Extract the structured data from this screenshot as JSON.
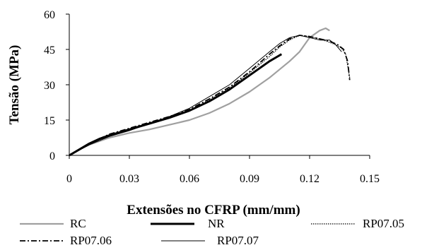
{
  "chart_data": {
    "type": "line",
    "title": "",
    "xlabel": "Extensões no CFRP (mm/mm)",
    "ylabel": "Tensão (MPa)",
    "xlim": [
      0,
      0.15
    ],
    "ylim": [
      0,
      60
    ],
    "x_ticks": [
      "0",
      "0.03",
      "0.06",
      "0.09",
      "0.12",
      "0.15"
    ],
    "y_ticks": [
      "0",
      "15",
      "30",
      "45",
      "60"
    ],
    "grid": false,
    "legend_position": "bottom",
    "series": [
      {
        "name": "RC",
        "color": "#a0a0a0",
        "style": "solid-thick",
        "x": [
          0,
          0.005,
          0.01,
          0.02,
          0.03,
          0.04,
          0.05,
          0.06,
          0.07,
          0.08,
          0.09,
          0.1,
          0.11,
          0.115,
          0.12,
          0.125,
          0.128,
          0.13
        ],
        "y": [
          0,
          2.5,
          4.5,
          7.5,
          9.5,
          11,
          13,
          15,
          18,
          22,
          27,
          33,
          40,
          44,
          50,
          53,
          54,
          53
        ]
      },
      {
        "name": "NR",
        "color": "#000000",
        "style": "solid-bold",
        "x": [
          0,
          0.005,
          0.01,
          0.015,
          0.02,
          0.03,
          0.04,
          0.05,
          0.06,
          0.07,
          0.08,
          0.09,
          0.1,
          0.104,
          0.106
        ],
        "y": [
          0,
          2.5,
          5,
          7,
          8.5,
          11,
          13.5,
          16,
          19,
          23,
          28,
          34,
          40,
          42,
          43
        ]
      },
      {
        "name": "RP07.05",
        "color": "#000000",
        "style": "dotted",
        "x": [
          0,
          0.01,
          0.02,
          0.03,
          0.04,
          0.05,
          0.06,
          0.07,
          0.08,
          0.09,
          0.1,
          0.105,
          0.11,
          0.115,
          0.12,
          0.125,
          0.13,
          0.133,
          0.136,
          0.138,
          0.14
        ],
        "y": [
          0,
          4.5,
          8.5,
          11,
          13.5,
          16,
          19,
          23.5,
          28.5,
          35,
          42,
          46,
          49,
          51,
          50.5,
          49.5,
          48,
          47,
          45.5,
          43,
          33
        ]
      },
      {
        "name": "RP07.06",
        "color": "#000000",
        "style": "dashdot",
        "x": [
          0,
          0.01,
          0.02,
          0.03,
          0.04,
          0.05,
          0.06,
          0.07,
          0.08,
          0.09,
          0.1,
          0.105,
          0.11,
          0.115,
          0.12,
          0.125,
          0.13,
          0.134,
          0.137,
          0.139,
          0.14
        ],
        "y": [
          0,
          5,
          9,
          11.5,
          14,
          16.5,
          19.5,
          24,
          29,
          35.5,
          43,
          46.5,
          49.5,
          51,
          50.5,
          49.5,
          48.5,
          47,
          45,
          40,
          32
        ]
      },
      {
        "name": "RP07.07",
        "color": "#000000",
        "style": "solid-thin",
        "x": [
          0,
          0.01,
          0.02,
          0.03,
          0.04,
          0.05,
          0.06,
          0.07,
          0.08,
          0.09,
          0.1,
          0.105,
          0.11,
          0.115,
          0.12,
          0.125,
          0.13,
          0.133,
          0.136
        ],
        "y": [
          0,
          4.5,
          8,
          10.5,
          13.5,
          16.5,
          20,
          25,
          30,
          37,
          44,
          47.5,
          50,
          51,
          50,
          49,
          49,
          47,
          44
        ]
      }
    ]
  }
}
